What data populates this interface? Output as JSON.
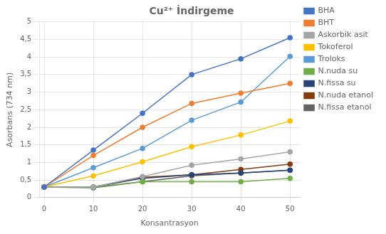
{
  "chart_data": {
    "type": "line",
    "title": "Cu²⁺ İndirgeme",
    "xlabel": "Konsantrasyon",
    "ylabel": "Asorbans (734 nm)",
    "x": [
      0,
      10,
      20,
      30,
      40,
      50
    ],
    "series": [
      {
        "name": "BHA",
        "color": "#4472C4",
        "values": [
          0.3,
          1.35,
          2.4,
          3.5,
          3.95,
          4.55
        ]
      },
      {
        "name": "BHT",
        "color": "#ED7D31",
        "values": [
          0.3,
          1.2,
          2.0,
          2.68,
          2.97,
          3.25
        ]
      },
      {
        "name": "Askorbik asit",
        "color": "#A5A5A5",
        "values": [
          0.3,
          0.3,
          0.6,
          0.92,
          1.1,
          1.3
        ]
      },
      {
        "name": "Tokoferol",
        "color": "#FFC000",
        "values": [
          0.3,
          0.62,
          1.02,
          1.45,
          1.78,
          2.18
        ]
      },
      {
        "name": "Troloks",
        "color": "#5B9BD5",
        "values": [
          0.3,
          0.85,
          1.4,
          2.2,
          2.72,
          4.02
        ]
      },
      {
        "name": "N.nuda su",
        "color": "#70AD47",
        "values": [
          0.3,
          0.3,
          0.45,
          0.45,
          0.45,
          0.55
        ]
      },
      {
        "name": "N.fissa su",
        "color": "#264478",
        "values": [
          0.3,
          0.3,
          0.55,
          0.65,
          0.7,
          0.78
        ]
      },
      {
        "name": "N.nuda etanol",
        "color": "#843C0C",
        "values": [
          0.3,
          0.3,
          0.58,
          0.65,
          0.8,
          0.95
        ]
      },
      {
        "name": "N.fissa etanol",
        "color": "#636363",
        "values": [
          0.3,
          0.28,
          0.45,
          0.62,
          0.7,
          0.78
        ]
      }
    ],
    "marker": "circle",
    "xlim": [
      -1,
      52
    ],
    "xticks": [
      0,
      10,
      20,
      30,
      40,
      50
    ],
    "ylim": [
      0,
      5
    ],
    "yticks": [
      0,
      {
        "value": 0.5,
        "label": "0,5"
      },
      1,
      {
        "value": 1.5,
        "label": "1,5"
      },
      2,
      {
        "value": 2.5,
        "label": "2,5"
      },
      3,
      {
        "value": 3.5,
        "label": "3,5"
      },
      4,
      {
        "value": 4.5,
        "label": "4,5"
      },
      5
    ],
    "grid": true,
    "legend": "right"
  }
}
